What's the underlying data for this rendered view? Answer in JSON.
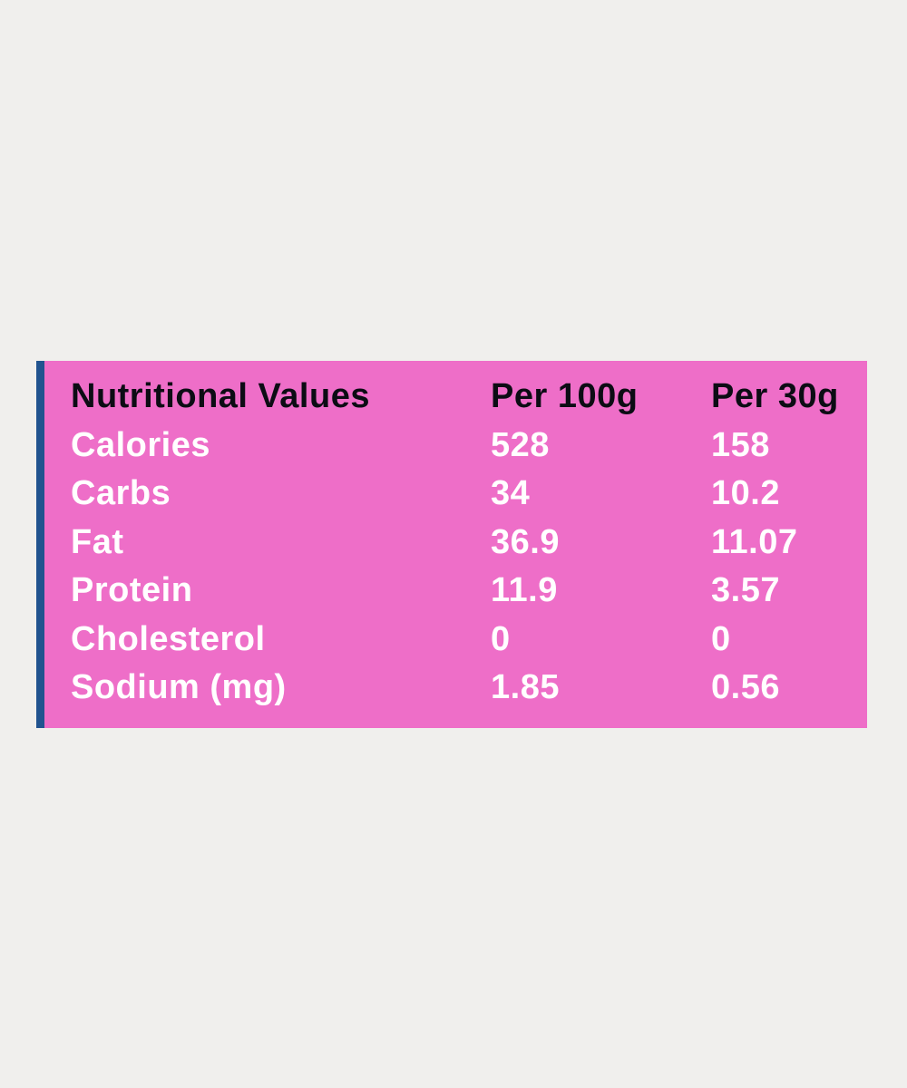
{
  "table": {
    "header": {
      "label": "Nutritional Values",
      "col1": "Per 100g",
      "col2": "Per 30g"
    },
    "rows": [
      {
        "label": "Calories",
        "per100g": "528",
        "per30g": "158"
      },
      {
        "label": "Carbs",
        "per100g": "34",
        "per30g": "10.2"
      },
      {
        "label": "Fat",
        "per100g": "36.9",
        "per30g": "11.07"
      },
      {
        "label": "Protein",
        "per100g": "11.9",
        "per30g": "3.57"
      },
      {
        "label": "Cholesterol",
        "per100g": "0",
        "per30g": "0"
      },
      {
        "label": "Sodium (mg)",
        "per100g": "1.85",
        "per30g": "0.56"
      }
    ]
  },
  "colors": {
    "page_background": "#f0efed",
    "panel_pink": "#ee6ec8",
    "accent_bar_blue": "#21538f",
    "header_text": "#0c0c14",
    "row_text": "#ffffff"
  }
}
